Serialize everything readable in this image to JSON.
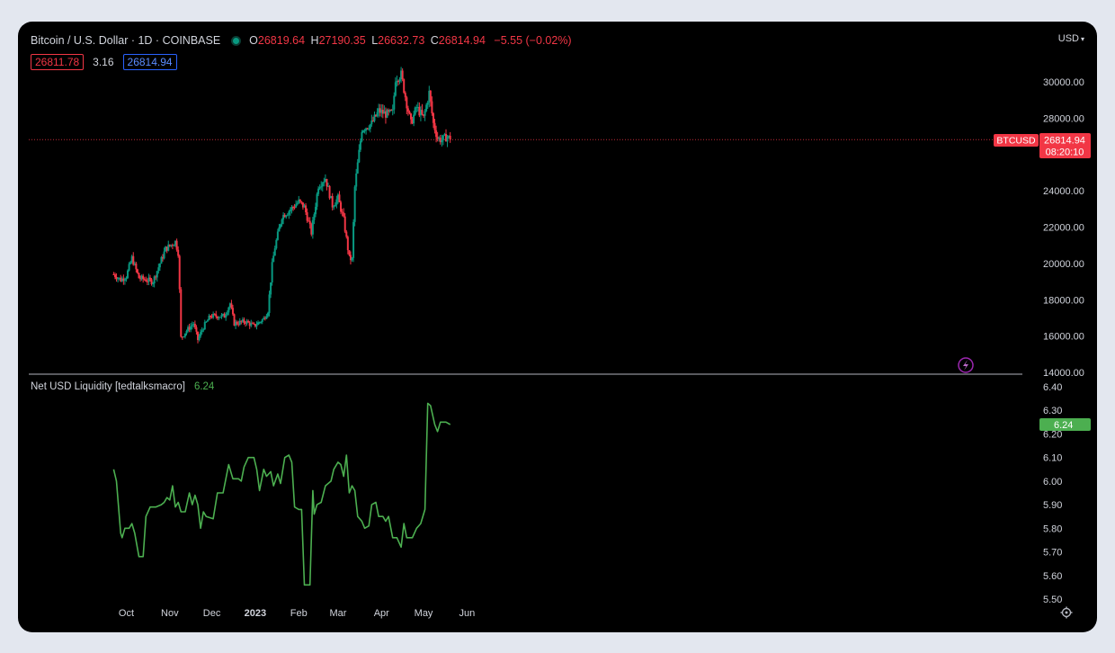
{
  "header": {
    "symbol": "Bitcoin / U.S. Dollar · 1D · COINBASE",
    "o_label": "O",
    "o_value": "26819.64",
    "h_label": "H",
    "h_value": "27190.35",
    "l_label": "L",
    "l_value": "26632.73",
    "c_label": "C",
    "c_value": "26814.94",
    "change": "−5.55 (−0.02%)",
    "bid": "26811.78",
    "spread": "3.16",
    "ask": "26814.94",
    "currency": "USD"
  },
  "price_tag": {
    "symbol": "BTCUSD",
    "price": "26814.94",
    "countdown": "08:20:10"
  },
  "indicator": {
    "name": "Net USD Liquidity [tedtalksmacro]",
    "value": "6.24",
    "tag": "6.24"
  },
  "colors": {
    "up": "#089981",
    "down": "#f23645",
    "line": "#4caf50",
    "background": "#000000",
    "text": "#d1d4dc"
  },
  "icons": [
    "lightning-icon",
    "gear-icon",
    "chevron-down-icon"
  ],
  "chart_data": [
    {
      "type": "candlestick",
      "title": "Bitcoin / U.S. Dollar · 1D · COINBASE",
      "x_range": [
        "2022-09-22",
        "2023-05-20"
      ],
      "ylim": [
        14000,
        31000
      ],
      "y_ticks": [
        "14000.00",
        "16000.00",
        "18000.00",
        "20000.00",
        "22000.00",
        "24000.00",
        "26000.00",
        "28000.00",
        "30000.00"
      ],
      "x_ticks": [
        {
          "label": "Oct",
          "date": "2022-10-01"
        },
        {
          "label": "Nov",
          "date": "2022-11-01"
        },
        {
          "label": "Dec",
          "date": "2022-12-01"
        },
        {
          "label": "2023",
          "date": "2023-01-01"
        },
        {
          "label": "Feb",
          "date": "2023-02-01"
        },
        {
          "label": "Mar",
          "date": "2023-03-01"
        },
        {
          "label": "Apr",
          "date": "2023-04-01"
        },
        {
          "label": "May",
          "date": "2023-05-01"
        },
        {
          "label": "Jun",
          "date": "2023-06-01"
        }
      ],
      "close_path": [
        [
          "2022-09-22",
          19400
        ],
        [
          "2022-09-27",
          19100
        ],
        [
          "2022-10-01",
          19300
        ],
        [
          "2022-10-05",
          20300
        ],
        [
          "2022-10-10",
          19200
        ],
        [
          "2022-10-15",
          19100
        ],
        [
          "2022-10-20",
          19000
        ],
        [
          "2022-10-25",
          20000
        ],
        [
          "2022-10-29",
          20800
        ],
        [
          "2022-11-05",
          21200
        ],
        [
          "2022-11-07",
          20600
        ],
        [
          "2022-11-08",
          18500
        ],
        [
          "2022-11-09",
          15900
        ],
        [
          "2022-11-13",
          16300
        ],
        [
          "2022-11-18",
          16700
        ],
        [
          "2022-11-21",
          15800
        ],
        [
          "2022-11-25",
          16500
        ],
        [
          "2022-11-30",
          17100
        ],
        [
          "2022-12-05",
          17100
        ],
        [
          "2022-12-10",
          17100
        ],
        [
          "2022-12-14",
          17800
        ],
        [
          "2022-12-17",
          16700
        ],
        [
          "2022-12-25",
          16800
        ],
        [
          "2022-12-31",
          16550
        ],
        [
          "2023-01-07",
          16950
        ],
        [
          "2023-01-10",
          17400
        ],
        [
          "2023-01-13",
          19900
        ],
        [
          "2023-01-15",
          20900
        ],
        [
          "2023-01-20",
          22600
        ],
        [
          "2023-01-25",
          22900
        ],
        [
          "2023-02-01",
          23400
        ],
        [
          "2023-02-05",
          23100
        ],
        [
          "2023-02-10",
          21700
        ],
        [
          "2023-02-15",
          24300
        ],
        [
          "2023-02-20",
          24700
        ],
        [
          "2023-02-25",
          23200
        ],
        [
          "2023-03-01",
          23600
        ],
        [
          "2023-03-05",
          22400
        ],
        [
          "2023-03-09",
          20300
        ],
        [
          "2023-03-11",
          20200
        ],
        [
          "2023-03-13",
          24200
        ],
        [
          "2023-03-18",
          27400
        ],
        [
          "2023-03-25",
          27700
        ],
        [
          "2023-03-30",
          28400
        ],
        [
          "2023-04-05",
          28200
        ],
        [
          "2023-04-09",
          28300
        ],
        [
          "2023-04-11",
          30200
        ],
        [
          "2023-04-15",
          30400
        ],
        [
          "2023-04-19",
          28800
        ],
        [
          "2023-04-22",
          27700
        ],
        [
          "2023-04-26",
          28600
        ],
        [
          "2023-05-01",
          28000
        ],
        [
          "2023-05-05",
          29400
        ],
        [
          "2023-05-08",
          27700
        ],
        [
          "2023-05-11",
          26900
        ],
        [
          "2023-05-14",
          26800
        ],
        [
          "2023-05-18",
          27000
        ],
        [
          "2023-05-20",
          26814.94
        ]
      ],
      "last_price": 26814.94
    },
    {
      "type": "line",
      "title": "Net USD Liquidity [tedtalksmacro]",
      "ylim": [
        5.5,
        6.4
      ],
      "y_ticks": [
        "5.50",
        "5.60",
        "5.70",
        "5.80",
        "5.90",
        "6.00",
        "6.10",
        "6.20",
        "6.30",
        "6.40"
      ],
      "series": [
        {
          "points": [
            [
              "2022-09-22",
              6.05
            ],
            [
              "2022-09-24",
              6.0
            ],
            [
              "2022-09-27",
              5.78
            ],
            [
              "2022-09-28",
              5.76
            ],
            [
              "2022-09-30",
              5.8
            ],
            [
              "2022-10-03",
              5.8
            ],
            [
              "2022-10-05",
              5.82
            ],
            [
              "2022-10-07",
              5.78
            ],
            [
              "2022-10-10",
              5.68
            ],
            [
              "2022-10-13",
              5.68
            ],
            [
              "2022-10-15",
              5.85
            ],
            [
              "2022-10-18",
              5.89
            ],
            [
              "2022-10-22",
              5.89
            ],
            [
              "2022-10-26",
              5.9
            ],
            [
              "2022-10-28",
              5.91
            ],
            [
              "2022-10-30",
              5.93
            ],
            [
              "2022-11-01",
              5.92
            ],
            [
              "2022-11-03",
              5.98
            ],
            [
              "2022-11-05",
              5.89
            ],
            [
              "2022-11-07",
              5.91
            ],
            [
              "2022-11-09",
              5.87
            ],
            [
              "2022-11-12",
              5.87
            ],
            [
              "2022-11-15",
              5.95
            ],
            [
              "2022-11-17",
              5.9
            ],
            [
              "2022-11-19",
              5.94
            ],
            [
              "2022-11-21",
              5.9
            ],
            [
              "2022-11-23",
              5.8
            ],
            [
              "2022-11-25",
              5.87
            ],
            [
              "2022-11-27",
              5.85
            ],
            [
              "2022-12-02",
              5.84
            ],
            [
              "2022-12-05",
              5.95
            ],
            [
              "2022-12-09",
              5.95
            ],
            [
              "2022-12-13",
              6.07
            ],
            [
              "2022-12-16",
              6.01
            ],
            [
              "2022-12-20",
              6.01
            ],
            [
              "2022-12-22",
              6.0
            ],
            [
              "2022-12-24",
              6.06
            ],
            [
              "2022-12-27",
              6.1
            ],
            [
              "2022-12-31",
              6.1
            ],
            [
              "2023-01-02",
              6.05
            ],
            [
              "2023-01-04",
              5.96
            ],
            [
              "2023-01-07",
              6.05
            ],
            [
              "2023-01-09",
              6.02
            ],
            [
              "2023-01-12",
              6.04
            ],
            [
              "2023-01-14",
              5.98
            ],
            [
              "2023-01-17",
              6.03
            ],
            [
              "2023-01-19",
              5.99
            ],
            [
              "2023-01-22",
              6.1
            ],
            [
              "2023-01-25",
              6.11
            ],
            [
              "2023-01-27",
              6.08
            ],
            [
              "2023-01-29",
              5.89
            ],
            [
              "2023-02-01",
              5.88
            ],
            [
              "2023-02-03",
              5.88
            ],
            [
              "2023-02-05",
              5.56
            ],
            [
              "2023-02-09",
              5.56
            ],
            [
              "2023-02-11",
              5.96
            ],
            [
              "2023-02-12",
              5.86
            ],
            [
              "2023-02-14",
              5.9
            ],
            [
              "2023-02-17",
              5.91
            ],
            [
              "2023-02-20",
              5.98
            ],
            [
              "2023-02-24",
              6.0
            ],
            [
              "2023-02-26",
              6.05
            ],
            [
              "2023-03-01",
              6.08
            ],
            [
              "2023-03-03",
              6.07
            ],
            [
              "2023-03-05",
              6.02
            ],
            [
              "2023-03-07",
              6.11
            ],
            [
              "2023-03-09",
              5.95
            ],
            [
              "2023-03-11",
              5.98
            ],
            [
              "2023-03-13",
              5.96
            ],
            [
              "2023-03-15",
              5.85
            ],
            [
              "2023-03-18",
              5.83
            ],
            [
              "2023-03-20",
              5.8
            ],
            [
              "2023-03-23",
              5.81
            ],
            [
              "2023-03-25",
              5.9
            ],
            [
              "2023-03-28",
              5.91
            ],
            [
              "2023-03-30",
              5.85
            ],
            [
              "2023-04-02",
              5.85
            ],
            [
              "2023-04-04",
              5.83
            ],
            [
              "2023-04-06",
              5.85
            ],
            [
              "2023-04-09",
              5.76
            ],
            [
              "2023-04-12",
              5.76
            ],
            [
              "2023-04-15",
              5.72
            ],
            [
              "2023-04-17",
              5.82
            ],
            [
              "2023-04-19",
              5.76
            ],
            [
              "2023-04-23",
              5.76
            ],
            [
              "2023-04-26",
              5.8
            ],
            [
              "2023-04-29",
              5.82
            ],
            [
              "2023-05-02",
              5.88
            ],
            [
              "2023-05-04",
              6.33
            ],
            [
              "2023-05-06",
              6.32
            ],
            [
              "2023-05-09",
              6.24
            ],
            [
              "2023-05-11",
              6.21
            ],
            [
              "2023-05-13",
              6.25
            ],
            [
              "2023-05-17",
              6.25
            ],
            [
              "2023-05-20",
              6.24
            ]
          ]
        }
      ]
    }
  ]
}
